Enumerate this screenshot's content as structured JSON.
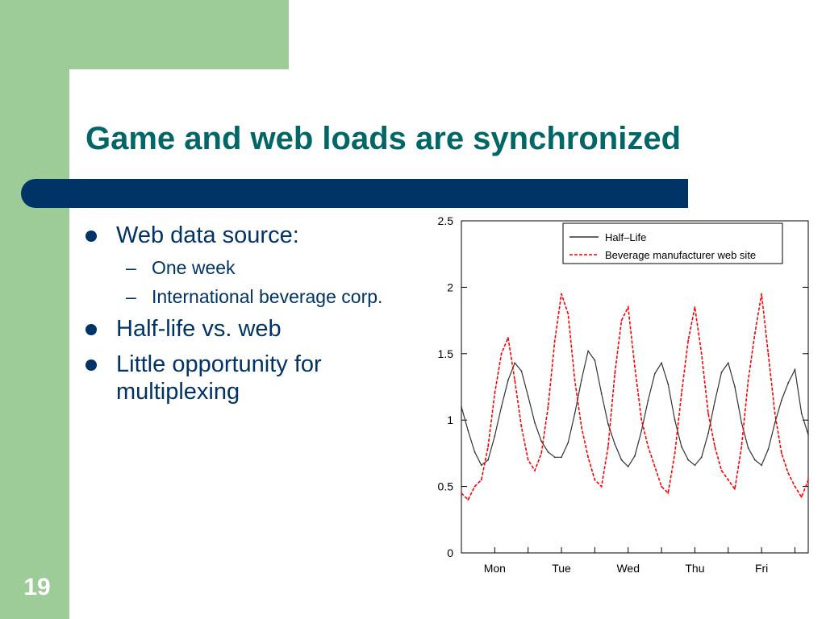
{
  "slide": {
    "title": "Game and web loads are synchronized",
    "number": "19"
  },
  "bullets": [
    {
      "text": "Web data source:",
      "sub": [
        "One week",
        "International beverage corp."
      ]
    },
    {
      "text": "Half-life vs. web",
      "sub": []
    },
    {
      "text": "Little opportunity for multiplexing",
      "sub": []
    }
  ],
  "colors": {
    "accent_green": "#9dcc99",
    "title_teal": "#006666",
    "navy": "#003366",
    "series_halflife": "#333333",
    "series_web": "#ff0000"
  },
  "chart_data": {
    "type": "line",
    "title": "",
    "xlabel": "",
    "ylabel": "",
    "ylim": [
      0,
      2.5
    ],
    "yticks": [
      0,
      0.5,
      1,
      1.5,
      2,
      2.5
    ],
    "ytick_labels": [
      "0",
      "0.5",
      "1",
      "1.5",
      "2",
      "2.5"
    ],
    "x_unit": "days",
    "xlim": [
      0,
      5.2
    ],
    "xticks": [
      0,
      0.5,
      1.0,
      1.5,
      2.0,
      2.5,
      3.0,
      3.5,
      4.0,
      4.5,
      5.0
    ],
    "xtick_labels": [
      "Mon",
      "Tue",
      "Wed",
      "Thu",
      "Fri"
    ],
    "xtick_label_positions": [
      0.5,
      1.5,
      2.5,
      3.5,
      4.5
    ],
    "grid": false,
    "legend_position": "top-right",
    "series": [
      {
        "name": "Half–Life",
        "style": "solid",
        "x": [
          0,
          0.1,
          0.2,
          0.3,
          0.4,
          0.5,
          0.6,
          0.7,
          0.8,
          0.9,
          1.0,
          1.1,
          1.2,
          1.3,
          1.4,
          1.5,
          1.6,
          1.7,
          1.8,
          1.9,
          2.0,
          2.1,
          2.2,
          2.3,
          2.4,
          2.5,
          2.6,
          2.7,
          2.8,
          2.9,
          3.0,
          3.1,
          3.2,
          3.3,
          3.4,
          3.5,
          3.6,
          3.7,
          3.8,
          3.9,
          4.0,
          4.1,
          4.2,
          4.3,
          4.4,
          4.5,
          4.6,
          4.7,
          4.8,
          4.9,
          5.0,
          5.1,
          5.2
        ],
        "y": [
          1.1,
          0.92,
          0.76,
          0.66,
          0.7,
          0.88,
          1.1,
          1.3,
          1.43,
          1.37,
          1.18,
          0.98,
          0.84,
          0.76,
          0.72,
          0.72,
          0.83,
          1.05,
          1.3,
          1.52,
          1.45,
          1.2,
          0.97,
          0.82,
          0.7,
          0.65,
          0.73,
          0.92,
          1.15,
          1.35,
          1.43,
          1.27,
          1.0,
          0.8,
          0.7,
          0.66,
          0.72,
          0.9,
          1.14,
          1.36,
          1.43,
          1.25,
          0.98,
          0.79,
          0.7,
          0.66,
          0.78,
          0.98,
          1.15,
          1.28,
          1.38,
          1.05,
          0.89
        ]
      },
      {
        "name": "Beverage manufacturer web site",
        "style": "dashed",
        "x": [
          0,
          0.1,
          0.2,
          0.3,
          0.4,
          0.5,
          0.6,
          0.7,
          0.8,
          0.9,
          1.0,
          1.1,
          1.2,
          1.3,
          1.4,
          1.5,
          1.6,
          1.7,
          1.8,
          1.9,
          2.0,
          2.1,
          2.2,
          2.3,
          2.4,
          2.5,
          2.6,
          2.7,
          2.8,
          2.9,
          3.0,
          3.1,
          3.2,
          3.3,
          3.4,
          3.5,
          3.6,
          3.7,
          3.8,
          3.9,
          4.0,
          4.1,
          4.2,
          4.3,
          4.4,
          4.5,
          4.6,
          4.7,
          4.8,
          4.9,
          5.0,
          5.1,
          5.2
        ],
        "y": [
          0.45,
          0.4,
          0.5,
          0.55,
          0.8,
          1.2,
          1.5,
          1.62,
          1.3,
          0.95,
          0.7,
          0.62,
          0.75,
          1.1,
          1.6,
          1.95,
          1.8,
          1.3,
          0.95,
          0.72,
          0.55,
          0.5,
          0.8,
          1.35,
          1.75,
          1.85,
          1.4,
          1.0,
          0.8,
          0.65,
          0.5,
          0.45,
          0.75,
          1.2,
          1.6,
          1.85,
          1.5,
          1.05,
          0.8,
          0.62,
          0.55,
          0.48,
          0.8,
          1.3,
          1.65,
          1.95,
          1.5,
          1.05,
          0.75,
          0.6,
          0.5,
          0.42,
          0.55
        ]
      }
    ]
  }
}
